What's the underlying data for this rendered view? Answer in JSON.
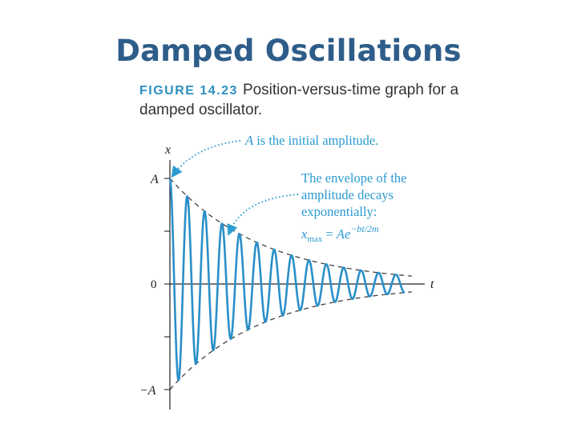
{
  "title": "Damped Oscillations",
  "figure": {
    "label": "FIGURE 14.23",
    "caption": "Position-versus-time graph for a damped oscillator."
  },
  "annotations": {
    "initial_amplitude": {
      "var": "A",
      "text": " is the initial amplitude."
    },
    "envelope_lines": [
      "The envelope of the",
      "amplitude decays",
      "exponentially:"
    ],
    "formula": {
      "x": "x",
      "sub": "max",
      "eq": " = ",
      "A": "A",
      "e": "e",
      "exponent": "−bt/2m"
    }
  },
  "colors": {
    "title": "#2e5d8a",
    "curve": "#2a8fc8",
    "annotation": "#2b9bd2",
    "envelope": "#333333"
  },
  "chart_data": {
    "type": "line",
    "xlabel": "t",
    "ylabel": "x",
    "y_ticks": [
      "A",
      "0",
      "−A"
    ],
    "x_ticks": [],
    "grid": false,
    "series": [
      {
        "kind": "damped-cosine",
        "amplitude": 1,
        "decay_per_cycle": 0.83,
        "cycles": 13.5,
        "color": "#2a8fc8"
      },
      {
        "kind": "envelope-upper",
        "equation": "A e^(-bt/2m)",
        "style": "dashed"
      },
      {
        "kind": "envelope-lower",
        "equation": "-A e^(-bt/2m)",
        "style": "dashed"
      }
    ]
  }
}
